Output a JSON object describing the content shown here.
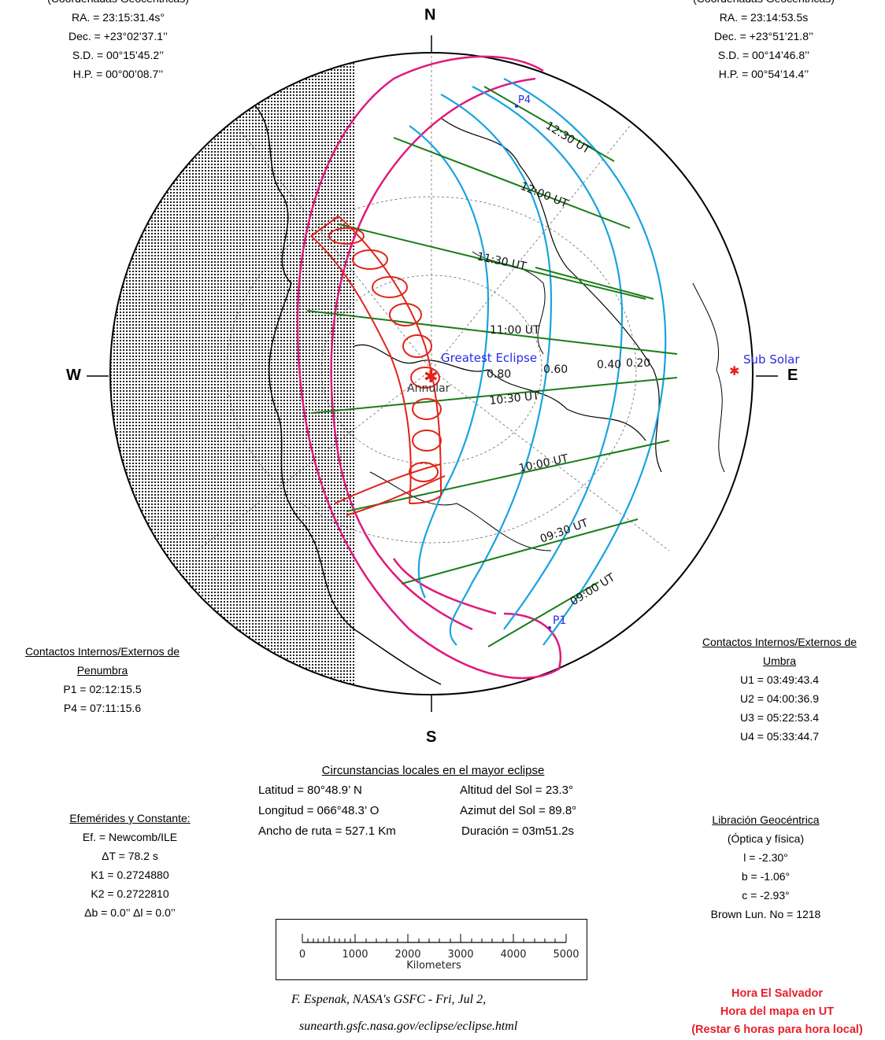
{
  "sun_coords": {
    "heading": "(Coordenadas Geocéntricas)",
    "ra": "RA. = 23:15:31.4s°",
    "dec": "Dec. = +23°02’37.1’’",
    "sd": "S.D. = 00°15’45.2’’",
    "hp": "H.P. = 00°00’08.7’’"
  },
  "moon_coords": {
    "heading": "(Coordenadas Geocéntricas)",
    "ra": "RA. = 23:14:53.5s",
    "dec": "Dec. = +23°51’21.8’’",
    "sd": "S.D. = 00°14’46.8’’",
    "hp": "H.P. = 00°54’14.4’’"
  },
  "compass": {
    "north": "N",
    "south": "S",
    "west": "W",
    "east": "E"
  },
  "map_labels": {
    "greatest_eclipse": "Greatest Eclipse",
    "annular": "Annular",
    "sub_solar": "Sub Solar",
    "p1": "P1",
    "p4": "P4",
    "times": [
      "12:30 UT",
      "12:00 UT",
      "11:30 UT",
      "11:00 UT",
      "10:30 UT",
      "10:00 UT",
      "09:30 UT",
      "09:00 UT"
    ],
    "magnitudes": [
      "0.80",
      "0.60",
      "0.40",
      "0.20"
    ]
  },
  "penumbra": {
    "title1": "Contactos Internos/Externos de",
    "title2": "Penumbra",
    "p1": "P1 = 02:12:15.5",
    "p4": "P4 = 07:11:15.6"
  },
  "umbra": {
    "title1": "Contactos Internos/Externos de",
    "title2": "Umbra",
    "u1": "U1 = 03:49:43.4",
    "u2": "U2 = 04:00:36.9",
    "u3": "U3 = 05:22:53.4",
    "u4": "U4 = 05:33:44.7"
  },
  "local_circumstances": {
    "title": "Circunstancias locales en el mayor eclipse",
    "latitude": "Latitud = 80°48.9’ N",
    "longitude": "Longitud = 066°48.3’ O",
    "path_width": "Ancho de ruta = 527.1 Km",
    "sun_altitude": "Altitud del Sol = 23.3°",
    "sun_azimuth": "Azimut del Sol = 89.8°",
    "duration": "Duración = 03m51.2s"
  },
  "ephemeris": {
    "title": "Efemérides y Constante:",
    "ef": "Ef. = Newcomb/ILE",
    "delta_t": "ΔT = 78.2 s",
    "k1": "K1 = 0.2724880",
    "k2": "K2 = 0.2722810",
    "delta_b_l": "Δb = 0.0’’  Δl = 0.0’’"
  },
  "libration": {
    "title": "Libración Geocéntrica",
    "subtitle": "(Óptica y física)",
    "l": "l = -2.30°",
    "b": "b = -1.06°",
    "c": "c = -2.93°",
    "brown": "Brown Lun. No = 1218"
  },
  "scale_bar": {
    "ticks": [
      "0",
      "1000",
      "2000",
      "3000",
      "4000",
      "5000"
    ],
    "unit": "Kilometers"
  },
  "credits": {
    "line1": "F. Espenak, NASA's GSFC - Fri, Jul 2,",
    "line2": "sunearth.gsfc.nasa.gov/eclipse/eclipse.html"
  },
  "timezone": {
    "line1": "Hora El Salvador",
    "line2": "Hora del mapa en UT",
    "line3": "(Restar 6 horas para hora local)"
  },
  "colors": {
    "penumbra_outline": "#e0197d",
    "magnitude_lines": "#1aa3e0",
    "time_lines": "#1a7d1a",
    "umbra_path": "#e2231a",
    "label_blue": "#2a2ae8",
    "timezone_red": "#e8202a"
  }
}
